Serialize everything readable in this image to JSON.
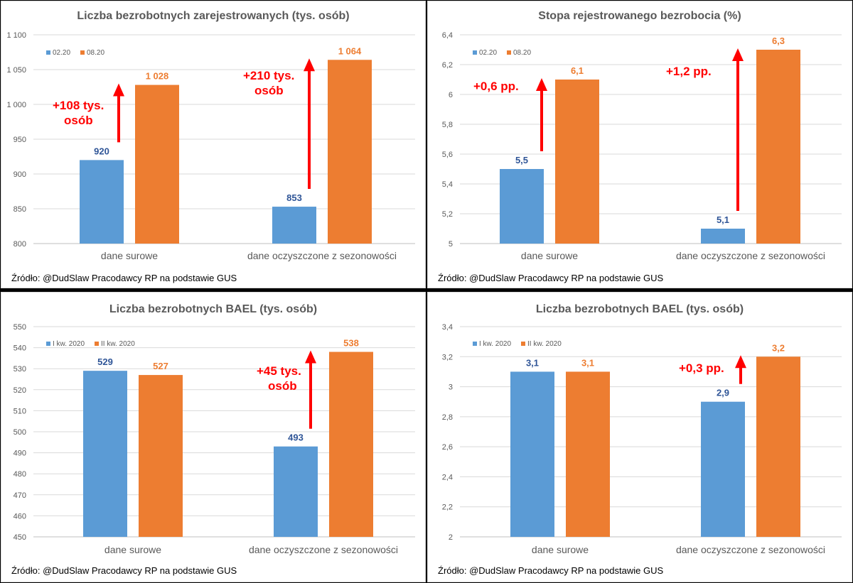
{
  "colors": {
    "series1": "#5b9bd5",
    "series2": "#ed7d31",
    "label1": "#2f5597",
    "arrow": "#ff0000",
    "grid": "#d9d9d9",
    "text": "#595959"
  },
  "panels": [
    {
      "source": "Źródło: @DudSlaw Pracodawcy RP na podstawie GUS",
      "annotations": [
        {
          "lines": [
            "+108 tys.",
            "osób"
          ]
        },
        {
          "lines": [
            "+210 tys.",
            "osób"
          ]
        }
      ],
      "ticks": [
        "800",
        "850",
        "900",
        "950",
        "1 000",
        "1 050",
        "1 100"
      ],
      "data_labels": [
        [
          "920",
          "1 028"
        ],
        [
          "853",
          "1 064"
        ]
      ]
    },
    {
      "source": "Źródło: @DudSlaw Pracodawcy RP na podstawie GUS",
      "annotations": [
        {
          "lines": [
            "+0,6 pp."
          ]
        },
        {
          "lines": [
            "+1,2 pp."
          ]
        }
      ],
      "ticks": [
        "5",
        "5,2",
        "5,4",
        "5,6",
        "5,8",
        "6",
        "6,2",
        "6,4"
      ],
      "data_labels": [
        [
          "5,5",
          "6,1"
        ],
        [
          "5,1",
          "6,3"
        ]
      ]
    },
    {
      "source": "Źródło: @DudSlaw Pracodawcy RP na podstawie GUS",
      "annotations": [
        null,
        {
          "lines": [
            "+45 tys.",
            "osób"
          ]
        }
      ],
      "ticks": [
        "450",
        "460",
        "470",
        "480",
        "490",
        "500",
        "510",
        "520",
        "530",
        "540",
        "550"
      ],
      "data_labels": [
        [
          "529",
          "527"
        ],
        [
          "493",
          "538"
        ]
      ]
    },
    {
      "source": "Źródło: @DudSlaw Pracodawcy RP na podstawie GUS",
      "annotations": [
        null,
        {
          "lines": [
            "+0,3 pp."
          ]
        }
      ],
      "ticks": [
        "2",
        "2,2",
        "2,4",
        "2,6",
        "2,8",
        "3",
        "3,2",
        "3,4"
      ],
      "data_labels": [
        [
          "3,1",
          "3,1"
        ],
        [
          "2,9",
          "3,2"
        ]
      ]
    }
  ],
  "chart_data": [
    {
      "type": "bar",
      "title": "Liczba bezrobotnych zarejestrowanych (tys. osób)",
      "categories": [
        "dane surowe",
        "dane oczyszczone z sezonowości"
      ],
      "series": [
        {
          "name": "02.20",
          "values": [
            920,
            853
          ]
        },
        {
          "name": "08.20",
          "values": [
            1028,
            1064
          ]
        }
      ],
      "ylim": [
        800,
        1100
      ],
      "legend": "top-left",
      "grid": true
    },
    {
      "type": "bar",
      "title": "Stopa rejestrowanego bezrobocia (%)",
      "categories": [
        "dane surowe",
        "dane oczyszczone z sezonowości"
      ],
      "series": [
        {
          "name": "02.20",
          "values": [
            5.5,
            5.1
          ]
        },
        {
          "name": "08.20",
          "values": [
            6.1,
            6.3
          ]
        }
      ],
      "ylim": [
        5,
        6.4
      ],
      "legend": "top-left",
      "grid": true
    },
    {
      "type": "bar",
      "title": "Liczba bezrobotnych BAEL (tys. osób)",
      "categories": [
        "dane surowe",
        "dane oczyszczone z sezonowości"
      ],
      "series": [
        {
          "name": "I kw. 2020",
          "values": [
            529,
            493
          ]
        },
        {
          "name": "II kw. 2020",
          "values": [
            527,
            538
          ]
        }
      ],
      "ylim": [
        450,
        550
      ],
      "legend": "top-left",
      "grid": true
    },
    {
      "type": "bar",
      "title": "Liczba bezrobotnych BAEL (tys. osób)",
      "categories": [
        "dane surowe",
        "dane oczyszczone z sezonowości"
      ],
      "series": [
        {
          "name": "I kw. 2020",
          "values": [
            3.1,
            2.9
          ]
        },
        {
          "name": "II kw. 2020",
          "values": [
            3.1,
            3.2
          ]
        }
      ],
      "ylim": [
        2,
        3.4
      ],
      "legend": "top-left",
      "grid": true
    }
  ]
}
